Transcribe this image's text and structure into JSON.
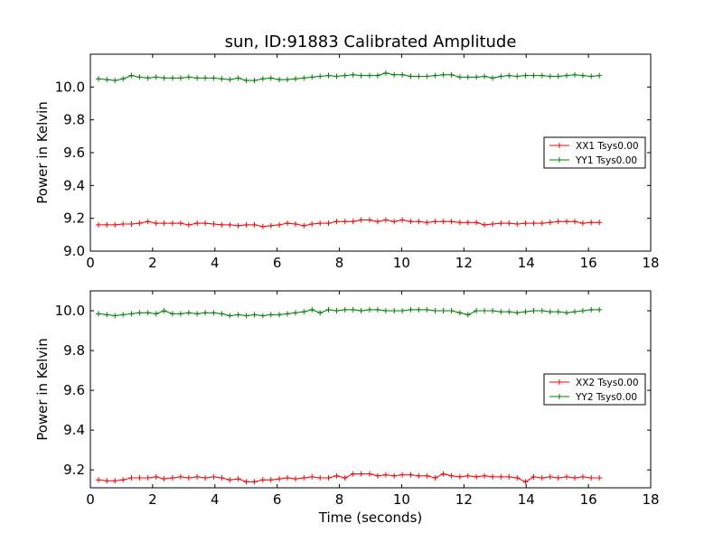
{
  "chart_data": [
    {
      "type": "line",
      "title": "sun, ID:91883 Calibrated Amplitude",
      "xlabel": "",
      "ylabel": "Power in Kelvin",
      "xlim": [
        0,
        18
      ],
      "ylim": [
        9.0,
        10.2
      ],
      "xticks": [
        "0",
        "2",
        "4",
        "6",
        "8",
        "10",
        "12",
        "14",
        "16",
        "18"
      ],
      "yticks": [
        "9.0",
        "9.2",
        "9.4",
        "9.6",
        "9.8",
        "10.0"
      ],
      "legend_position": "center-right",
      "grid": false,
      "series": [
        {
          "name": "XX1 Tsys0.00",
          "color": "#ff0000",
          "x": [
            0.26,
            0.53,
            0.79,
            1.05,
            1.32,
            1.58,
            1.85,
            2.11,
            2.37,
            2.64,
            2.9,
            3.16,
            3.43,
            3.69,
            3.96,
            4.22,
            4.48,
            4.75,
            5.01,
            5.27,
            5.54,
            5.8,
            6.07,
            6.33,
            6.59,
            6.86,
            7.12,
            7.38,
            7.65,
            7.91,
            8.18,
            8.44,
            8.7,
            8.97,
            9.23,
            9.49,
            9.76,
            10.02,
            10.29,
            10.55,
            10.81,
            11.08,
            11.34,
            11.6,
            11.87,
            12.13,
            12.4,
            12.66,
            12.92,
            13.19,
            13.45,
            13.71,
            13.98,
            14.24,
            14.51,
            14.77,
            15.03,
            15.3,
            15.56,
            15.82,
            16.09,
            16.35
          ],
          "values": [
            9.16,
            9.16,
            9.16,
            9.165,
            9.165,
            9.17,
            9.18,
            9.17,
            9.17,
            9.17,
            9.17,
            9.16,
            9.17,
            9.17,
            9.165,
            9.16,
            9.16,
            9.155,
            9.16,
            9.16,
            9.15,
            9.155,
            9.16,
            9.17,
            9.165,
            9.155,
            9.165,
            9.17,
            9.17,
            9.18,
            9.18,
            9.18,
            9.19,
            9.19,
            9.18,
            9.19,
            9.18,
            9.19,
            9.18,
            9.18,
            9.175,
            9.18,
            9.18,
            9.18,
            9.175,
            9.175,
            9.175,
            9.16,
            9.165,
            9.17,
            9.17,
            9.165,
            9.17,
            9.17,
            9.17,
            9.175,
            9.18,
            9.18,
            9.18,
            9.17,
            9.175,
            9.175
          ]
        },
        {
          "name": "YY1 Tsys0.00",
          "color": "#008000",
          "x": [
            0.26,
            0.53,
            0.79,
            1.05,
            1.32,
            1.58,
            1.85,
            2.11,
            2.37,
            2.64,
            2.9,
            3.16,
            3.43,
            3.69,
            3.96,
            4.22,
            4.48,
            4.75,
            5.01,
            5.27,
            5.54,
            5.8,
            6.07,
            6.33,
            6.59,
            6.86,
            7.12,
            7.38,
            7.65,
            7.91,
            8.18,
            8.44,
            8.7,
            8.97,
            9.23,
            9.49,
            9.76,
            10.02,
            10.29,
            10.55,
            10.81,
            11.08,
            11.34,
            11.6,
            11.87,
            12.13,
            12.4,
            12.66,
            12.92,
            13.19,
            13.45,
            13.71,
            13.98,
            14.24,
            14.51,
            14.77,
            15.03,
            15.3,
            15.56,
            15.82,
            16.09,
            16.35
          ],
          "values": [
            10.05,
            10.045,
            10.04,
            10.05,
            10.07,
            10.06,
            10.055,
            10.06,
            10.055,
            10.055,
            10.055,
            10.06,
            10.055,
            10.055,
            10.055,
            10.05,
            10.045,
            10.055,
            10.04,
            10.04,
            10.05,
            10.055,
            10.045,
            10.045,
            10.05,
            10.055,
            10.06,
            10.065,
            10.07,
            10.065,
            10.07,
            10.075,
            10.07,
            10.07,
            10.07,
            10.085,
            10.075,
            10.075,
            10.065,
            10.065,
            10.065,
            10.07,
            10.075,
            10.075,
            10.06,
            10.06,
            10.06,
            10.065,
            10.055,
            10.065,
            10.07,
            10.065,
            10.07,
            10.07,
            10.07,
            10.065,
            10.065,
            10.07,
            10.075,
            10.07,
            10.065,
            10.07
          ]
        }
      ]
    },
    {
      "type": "line",
      "title": "",
      "xlabel": "Time (seconds)",
      "ylabel": "Power in Kelvin",
      "xlim": [
        0,
        18
      ],
      "ylim": [
        9.11,
        10.1
      ],
      "xticks": [
        "0",
        "2",
        "4",
        "6",
        "8",
        "10",
        "12",
        "14",
        "16",
        "18"
      ],
      "yticks": [
        "9.2",
        "9.4",
        "9.6",
        "9.8",
        "10.0"
      ],
      "legend_position": "center-right",
      "grid": false,
      "series": [
        {
          "name": "XX2 Tsys0.00",
          "color": "#ff0000",
          "x": [
            0.26,
            0.53,
            0.79,
            1.05,
            1.32,
            1.58,
            1.85,
            2.11,
            2.37,
            2.64,
            2.9,
            3.16,
            3.43,
            3.69,
            3.96,
            4.22,
            4.48,
            4.75,
            5.01,
            5.27,
            5.54,
            5.8,
            6.07,
            6.33,
            6.59,
            6.86,
            7.12,
            7.38,
            7.65,
            7.91,
            8.18,
            8.44,
            8.7,
            8.97,
            9.23,
            9.49,
            9.76,
            10.02,
            10.29,
            10.55,
            10.81,
            11.08,
            11.34,
            11.6,
            11.87,
            12.13,
            12.4,
            12.66,
            12.92,
            13.19,
            13.45,
            13.71,
            13.98,
            14.24,
            14.51,
            14.77,
            15.03,
            15.3,
            15.56,
            15.82,
            16.09,
            16.35
          ],
          "values": [
            9.15,
            9.145,
            9.145,
            9.15,
            9.16,
            9.16,
            9.16,
            9.165,
            9.155,
            9.16,
            9.165,
            9.16,
            9.165,
            9.16,
            9.165,
            9.16,
            9.15,
            9.155,
            9.14,
            9.14,
            9.15,
            9.15,
            9.155,
            9.16,
            9.155,
            9.16,
            9.165,
            9.16,
            9.16,
            9.17,
            9.16,
            9.18,
            9.18,
            9.18,
            9.17,
            9.175,
            9.17,
            9.175,
            9.175,
            9.17,
            9.17,
            9.16,
            9.18,
            9.17,
            9.165,
            9.17,
            9.165,
            9.17,
            9.165,
            9.165,
            9.165,
            9.16,
            9.14,
            9.165,
            9.16,
            9.165,
            9.16,
            9.165,
            9.16,
            9.165,
            9.16,
            9.16
          ]
        },
        {
          "name": "YY2 Tsys0.00",
          "color": "#008000",
          "x": [
            0.26,
            0.53,
            0.79,
            1.05,
            1.32,
            1.58,
            1.85,
            2.11,
            2.37,
            2.64,
            2.9,
            3.16,
            3.43,
            3.69,
            3.96,
            4.22,
            4.48,
            4.75,
            5.01,
            5.27,
            5.54,
            5.8,
            6.07,
            6.33,
            6.59,
            6.86,
            7.12,
            7.38,
            7.65,
            7.91,
            8.18,
            8.44,
            8.7,
            8.97,
            9.23,
            9.49,
            9.76,
            10.02,
            10.29,
            10.55,
            10.81,
            11.08,
            11.34,
            11.6,
            11.87,
            12.13,
            12.4,
            12.66,
            12.92,
            13.19,
            13.45,
            13.71,
            13.98,
            14.24,
            14.51,
            14.77,
            15.03,
            15.3,
            15.56,
            15.82,
            16.09,
            16.35
          ],
          "values": [
            9.985,
            9.98,
            9.975,
            9.98,
            9.985,
            9.99,
            9.99,
            9.985,
            10.0,
            9.985,
            9.985,
            9.99,
            9.985,
            9.99,
            9.99,
            9.985,
            9.975,
            9.98,
            9.975,
            9.98,
            9.975,
            9.98,
            9.98,
            9.985,
            9.99,
            9.995,
            10.005,
            9.99,
            10.005,
            10.0,
            10.005,
            10.005,
            10.0,
            10.005,
            10.005,
            10.0,
            10.0,
            10.0,
            10.005,
            10.005,
            10.005,
            10.0,
            10.0,
            10.0,
            9.99,
            9.98,
            10.0,
            10.0,
            10.0,
            9.995,
            9.995,
            9.99,
            9.995,
            10.0,
            10.0,
            9.995,
            9.995,
            9.99,
            9.995,
            10.0,
            10.005,
            10.005
          ]
        }
      ]
    }
  ]
}
